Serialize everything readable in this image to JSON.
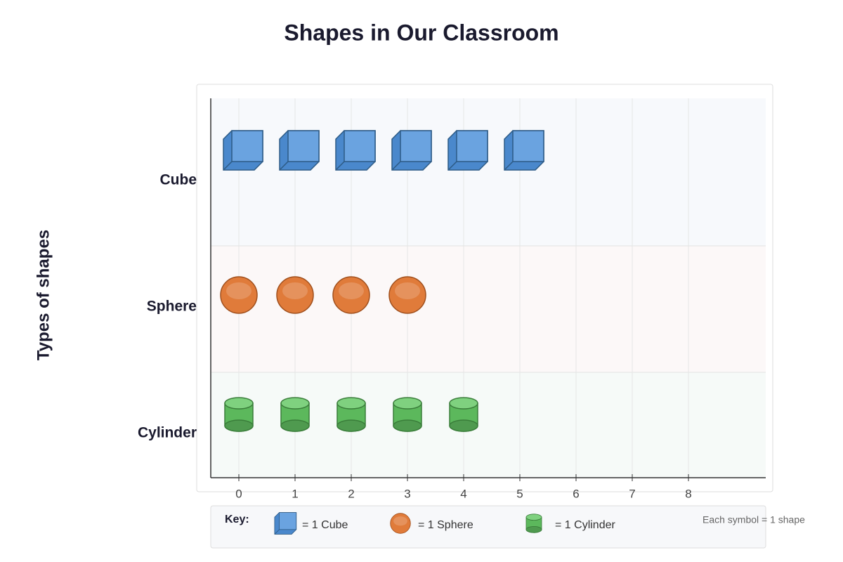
{
  "chart_data": {
    "type": "pictograph",
    "title": "Shapes in Our Classroom",
    "y_label": "Types of shapes",
    "categories": [
      "Cube",
      "Sphere",
      "Cylinder"
    ],
    "values": [
      6,
      4,
      5
    ],
    "colors": [
      "#6aa3e0",
      "#e07b3a",
      "#5cb85c"
    ],
    "xlim": [
      -0.5,
      9.375
    ],
    "xticks": [
      0,
      1,
      2,
      3,
      4,
      5,
      6,
      7,
      8
    ],
    "grid": true,
    "key": {
      "title": "Key:",
      "entries": [
        "= 1 Cube",
        "= 1 Sphere",
        "= 1 Cylinder"
      ],
      "note": "Each symbol = 1 shape"
    }
  }
}
